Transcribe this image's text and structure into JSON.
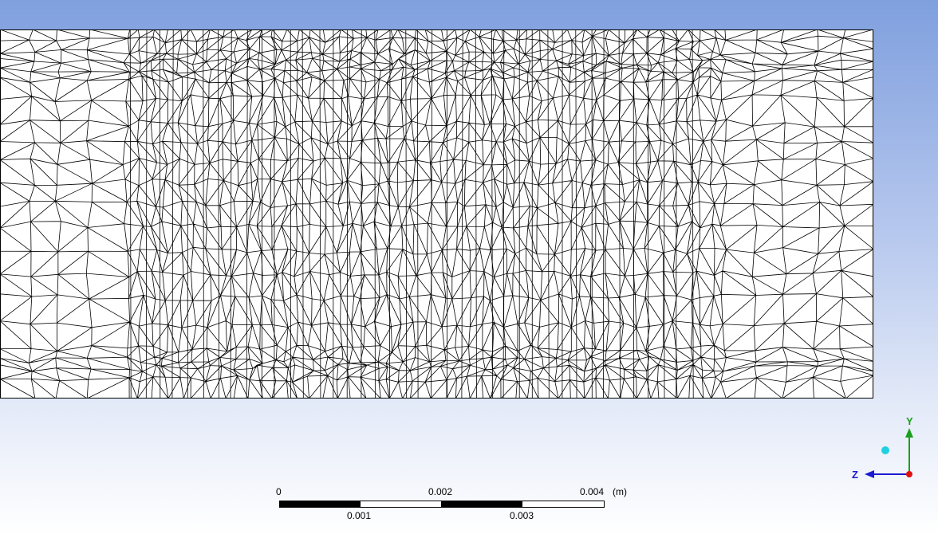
{
  "viewport": {
    "background_top": "#7f9fde",
    "background_bottom": "#ffffff"
  },
  "mesh": {
    "edge_color": "#000000",
    "fill_color": "#ffffff"
  },
  "scale_bar": {
    "top_labels": [
      "0",
      "0.002",
      "0.004"
    ],
    "bottom_labels": [
      "0.001",
      "0.003"
    ],
    "unit": "(m)"
  },
  "axis_triad": {
    "y_label": "Y",
    "z_label": "Z",
    "y_color": "#1aa01a",
    "z_color": "#1a1ad0",
    "x_color": "#e01010",
    "ball_color": "#20d0e0"
  }
}
